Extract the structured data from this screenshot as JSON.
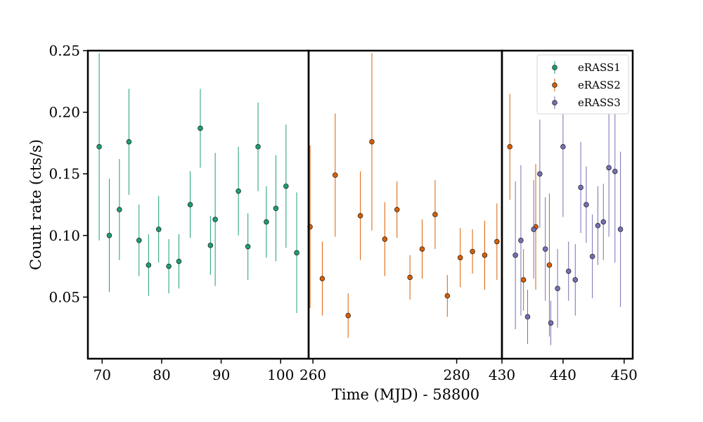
{
  "chart_data": {
    "type": "scatter",
    "xlabel": "Time (MJD) - 58800",
    "ylabel": "Count rate (cts/s)",
    "ylim": [
      0.0,
      0.25
    ],
    "y_ticks": [
      0.05,
      0.1,
      0.15,
      0.2,
      0.25
    ],
    "y_tick_labels": [
      "0.05",
      "0.10",
      "0.15",
      "0.20",
      "0.25"
    ],
    "legend_position": "top-right",
    "grid": false,
    "panels": [
      {
        "xlim": [
          67.6,
          104.7
        ],
        "x_ticks": [
          70,
          80,
          90,
          100
        ],
        "x_tick_labels": [
          "70",
          "80",
          "90",
          "100"
        ]
      },
      {
        "xlim": [
          259.4,
          286.3
        ],
        "x_ticks": [
          260,
          280
        ],
        "x_tick_labels": [
          "260",
          "280"
        ]
      },
      {
        "xlim": [
          430.0,
          451.4
        ],
        "x_ticks": [
          430,
          440,
          450
        ],
        "x_tick_labels": [
          "430",
          "440",
          "450"
        ]
      }
    ],
    "series": [
      {
        "name": "eRASS1",
        "color": "#1b9e77",
        "panel": 0,
        "x": [
          69.5,
          71.2,
          72.9,
          74.5,
          76.2,
          77.8,
          79.5,
          81.2,
          82.9,
          84.8,
          86.5,
          88.2,
          89.0,
          92.9,
          94.5,
          96.2,
          97.6,
          99.2,
          100.9,
          102.7
        ],
        "y": [
          0.172,
          0.1,
          0.121,
          0.176,
          0.096,
          0.076,
          0.105,
          0.075,
          0.079,
          0.125,
          0.187,
          0.092,
          0.113,
          0.136,
          0.091,
          0.172,
          0.111,
          0.122,
          0.14,
          0.086
        ],
        "err": [
          0.076,
          0.046,
          0.041,
          0.043,
          0.029,
          0.025,
          0.027,
          0.022,
          0.022,
          0.027,
          0.032,
          0.024,
          0.054,
          0.036,
          0.027,
          0.036,
          0.029,
          0.043,
          0.05,
          0.049
        ]
      },
      {
        "name": "eRASS2",
        "color": "#d95f02",
        "panel": 1,
        "x": [
          259.6,
          261.3,
          263.1,
          264.9,
          266.6,
          268.2,
          270.0,
          271.7,
          273.5,
          275.2,
          277.0,
          278.7,
          280.5,
          282.2,
          283.9,
          285.6,
          287.4,
          289.3,
          291.0,
          292.9
        ],
        "y": [
          0.107,
          0.065,
          0.149,
          0.035,
          0.116,
          0.176,
          0.097,
          0.121,
          0.066,
          0.089,
          0.117,
          0.051,
          0.082,
          0.087,
          0.084,
          0.095,
          0.172,
          0.064,
          0.107,
          0.076
        ],
        "err": [
          0.066,
          0.03,
          0.05,
          0.018,
          0.036,
          0.072,
          0.03,
          0.023,
          0.018,
          0.024,
          0.028,
          0.017,
          0.024,
          0.018,
          0.028,
          0.031,
          0.043,
          0.025,
          0.051,
          0.058
        ]
      },
      {
        "name": "eRASS3",
        "color": "#7570b3",
        "panel": 2,
        "x": [
          432.2,
          433.1,
          434.2,
          435.2,
          436.2,
          437.1,
          438.0,
          439.1,
          440.0,
          440.9,
          442.0,
          442.9,
          443.8,
          444.8,
          445.7,
          446.6,
          447.5,
          448.5,
          449.4
        ],
        "y": [
          0.084,
          0.096,
          0.034,
          0.105,
          0.15,
          0.089,
          0.029,
          0.057,
          0.172,
          0.071,
          0.064,
          0.139,
          0.125,
          0.083,
          0.108,
          0.111,
          0.155,
          0.152,
          0.105
        ],
        "err": [
          0.06,
          0.061,
          0.022,
          0.04,
          0.044,
          0.042,
          0.018,
          0.032,
          0.057,
          0.024,
          0.029,
          0.037,
          0.031,
          0.034,
          0.032,
          0.031,
          0.056,
          0.074,
          0.063
        ]
      }
    ]
  }
}
